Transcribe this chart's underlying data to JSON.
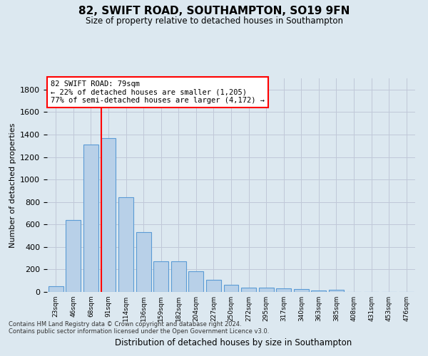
{
  "title": "82, SWIFT ROAD, SOUTHAMPTON, SO19 9FN",
  "subtitle": "Size of property relative to detached houses in Southampton",
  "xlabel": "Distribution of detached houses by size in Southampton",
  "ylabel": "Number of detached properties",
  "categories": [
    "23sqm",
    "46sqm",
    "68sqm",
    "91sqm",
    "114sqm",
    "136sqm",
    "159sqm",
    "182sqm",
    "204sqm",
    "227sqm",
    "250sqm",
    "272sqm",
    "295sqm",
    "317sqm",
    "340sqm",
    "363sqm",
    "385sqm",
    "408sqm",
    "431sqm",
    "453sqm",
    "476sqm"
  ],
  "values": [
    50,
    640,
    1310,
    1370,
    845,
    530,
    275,
    275,
    185,
    105,
    65,
    40,
    40,
    30,
    25,
    15,
    20,
    0,
    0,
    0,
    0
  ],
  "bar_color": "#b8d0e8",
  "bar_edge_color": "#5b9bd5",
  "grid_color": "#c0c8d8",
  "background_color": "#dce8f0",
  "vline_color": "red",
  "vline_pos": 2.58,
  "annotation_text": "82 SWIFT ROAD: 79sqm\n← 22% of detached houses are smaller (1,205)\n77% of semi-detached houses are larger (4,172) →",
  "annotation_box_facecolor": "white",
  "annotation_box_edgecolor": "red",
  "ylim": [
    0,
    1900
  ],
  "yticks": [
    0,
    200,
    400,
    600,
    800,
    1000,
    1200,
    1400,
    1600,
    1800
  ],
  "footer_line1": "Contains HM Land Registry data © Crown copyright and database right 2024.",
  "footer_line2": "Contains public sector information licensed under the Open Government Licence v3.0."
}
